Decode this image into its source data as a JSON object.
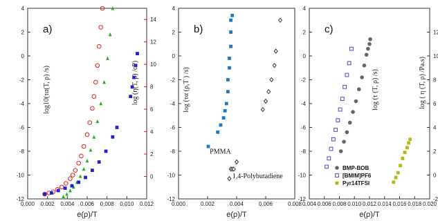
{
  "chart_data": [
    {
      "type": "scatter",
      "panel_label": "a)",
      "xlabel": "e(ρ)/T",
      "ylabel_left": "log10(τα(T, ρ) /s)",
      "ylabel_right": "log (η(T, ρ) /cP)",
      "xlim": [
        -0.002,
        0.012
      ],
      "ylim": [
        -12,
        4
      ],
      "y2lim": [
        -2,
        15
      ],
      "xticks": [
        "0.000",
        "0.002",
        "0.004",
        "0.006",
        "0.008",
        "0.010",
        "0.012"
      ],
      "yticks": [
        "-12",
        "-10",
        "-8",
        "-6",
        "-4",
        "-2",
        "0",
        "2",
        "4"
      ],
      "y2ticks": [
        "0",
        "2",
        "4",
        "6",
        "8",
        "10",
        "12",
        "14"
      ],
      "series": [
        {
          "marker": "circle-open",
          "color": "#e02020",
          "axis": "left",
          "x": [
            0.0,
            0.0005,
            0.001,
            0.0015,
            0.002,
            0.0025,
            0.003,
            0.0033,
            0.0036,
            0.004,
            0.0043,
            0.0046,
            0.005,
            0.0053,
            0.0056,
            0.0058,
            0.006,
            0.0062,
            0.0064,
            0.0066,
            0.0068
          ],
          "y": [
            -11.6,
            -11.5,
            -11.4,
            -11.2,
            -11.0,
            -10.7,
            -10.3,
            -10.0,
            -9.6,
            -9.0,
            -8.4,
            -7.6,
            -6.6,
            -5.6,
            -4.4,
            -3.4,
            -2.2,
            -0.8,
            0.8,
            2.4,
            4.0
          ]
        },
        {
          "marker": "triangle",
          "color": "#22b022",
          "axis": "left",
          "x": [
            0.0022,
            0.0026,
            0.003,
            0.0034,
            0.0038,
            0.0042,
            0.0046,
            0.005,
            0.0054,
            0.0058,
            0.0062,
            0.0066,
            0.007,
            0.0074,
            0.0077,
            0.008
          ],
          "y": [
            -11.8,
            -11.6,
            -11.3,
            -11.0,
            -10.6,
            -10.1,
            -9.5,
            -8.8,
            -7.9,
            -6.8,
            -5.5,
            -4.0,
            -2.2,
            -0.2,
            1.8,
            4.0
          ]
        },
        {
          "marker": "square",
          "color": "#2222cc",
          "axis": "left",
          "x": [
            0.0,
            0.0008,
            0.0016,
            0.0024,
            0.0032,
            0.004,
            0.0048,
            0.0056,
            0.0064,
            0.0072,
            0.008,
            0.0085
          ],
          "y": [
            -11.6,
            -11.5,
            -11.3,
            -11.1,
            -10.9,
            -10.6,
            -10.2,
            -9.6,
            -8.9,
            -8.0,
            -6.8,
            -6.0
          ]
        },
        {
          "marker": "square",
          "color": "#2222cc",
          "axis": "left",
          "x": [
            0.0101,
            0.0103,
            0.0105,
            0.0107,
            0.0109
          ],
          "y": [
            -3.4,
            -2.6,
            -1.8,
            -0.8,
            0.2
          ]
        }
      ]
    },
    {
      "type": "scatter",
      "panel_label": "b)",
      "xlabel": "e(ρ)/T",
      "ylabel": "log (τα (ρ,T )  /s)",
      "xlim": [
        0.0,
        0.008
      ],
      "ylim": [
        -12,
        4
      ],
      "xticks": [
        "0.000",
        "0.002",
        "0.004",
        "0.006",
        "0.008"
      ],
      "yticks": [
        "-12",
        "-10",
        "-8",
        "-6",
        "-4",
        "-2",
        "0",
        "2",
        "4"
      ],
      "annotations": [
        "PMMA",
        "1,4-Polybutadiene"
      ],
      "series": [
        {
          "marker": "square",
          "color": "#1f77c0",
          "x": [
            0.00205,
            0.0027,
            0.0029,
            0.0031,
            0.0032,
            0.0033,
            0.0034,
            0.0034,
            0.0035,
            0.0035,
            0.0036,
            0.0036,
            0.0036,
            0.0037
          ],
          "y": [
            -7.6,
            -6.4,
            -5.8,
            -5.2,
            -4.6,
            -4.0,
            -3.0,
            -2.0,
            -1.0,
            -0.2,
            0.8,
            2.0,
            3.0,
            3.4
          ]
        },
        {
          "marker": "diamond-open",
          "color": "#333333",
          "x": [
            0.0035,
            0.0036,
            0.0037,
            0.0038,
            0.004,
            0.0058,
            0.006,
            0.0062,
            0.0064,
            0.0066,
            0.0067,
            0.007
          ],
          "y": [
            -10.3,
            -9.5,
            -9.5,
            -9.5,
            -8.9,
            -4.5,
            -3.8,
            -3.0,
            -2.0,
            -0.8,
            0.4,
            3.0
          ]
        }
      ]
    },
    {
      "type": "scatter",
      "panel_label": "c)",
      "xlabel": "e(ρ)/T",
      "ylabel_left": "log (τ (T, ρ) /s)",
      "ylabel_right": "log ( η (T, ρ)  /Pa.s)",
      "xlim": [
        0.004,
        0.02
      ],
      "ylim": [
        -12,
        4
      ],
      "y2lim": [
        -2,
        14
      ],
      "xticks": [
        "0.004",
        "0.006",
        "0.008",
        "0.010",
        "0.012",
        "0.014",
        "0.016",
        "0.018",
        "0.020"
      ],
      "yticks": [
        "-12",
        "-10",
        "-8",
        "-6",
        "-4",
        "-2",
        "0",
        "2",
        "4"
      ],
      "y2ticks": [
        "-2",
        "0",
        "2",
        "4",
        "6",
        "8",
        "10",
        "12"
      ],
      "legend_position": "lower-left",
      "series": [
        {
          "name": "BMP-BOB",
          "marker": "circle",
          "color": "#666666",
          "axis": "left",
          "x": [
            0.0082,
            0.0086,
            0.009,
            0.0094,
            0.0098,
            0.0102,
            0.0106,
            0.011,
            0.0113,
            0.0116,
            0.0118,
            0.012,
            0.0121
          ],
          "y": [
            -8.0,
            -7.2,
            -6.4,
            -5.6,
            -4.7,
            -3.8,
            -2.8,
            -1.8,
            -0.8,
            0.1,
            0.6,
            1.0,
            1.4
          ]
        },
        {
          "name": "[BMIM]PF6",
          "marker": "square-open",
          "color": "#6a3cc8",
          "axis": "left",
          "x": [
            0.0063,
            0.0066,
            0.0069,
            0.0072,
            0.0075,
            0.0078,
            0.0081,
            0.0084,
            0.0087,
            0.009,
            0.0093,
            0.0096
          ],
          "y": [
            -9.3,
            -8.6,
            -7.8,
            -7.0,
            -6.2,
            -5.4,
            -4.5,
            -3.6,
            -2.6,
            -1.6,
            -0.6,
            0.6
          ]
        },
        {
          "name": "Pyr14TFSI",
          "marker": "square",
          "color": "#b8b814",
          "axis": "right",
          "x": [
            0.0152,
            0.0155,
            0.0158,
            0.0161,
            0.0164,
            0.0167,
            0.017,
            0.0172,
            0.0174
          ],
          "y": [
            -0.6,
            -0.2,
            0.2,
            0.8,
            1.4,
            1.9,
            2.3,
            2.7,
            3.0
          ]
        }
      ]
    }
  ]
}
